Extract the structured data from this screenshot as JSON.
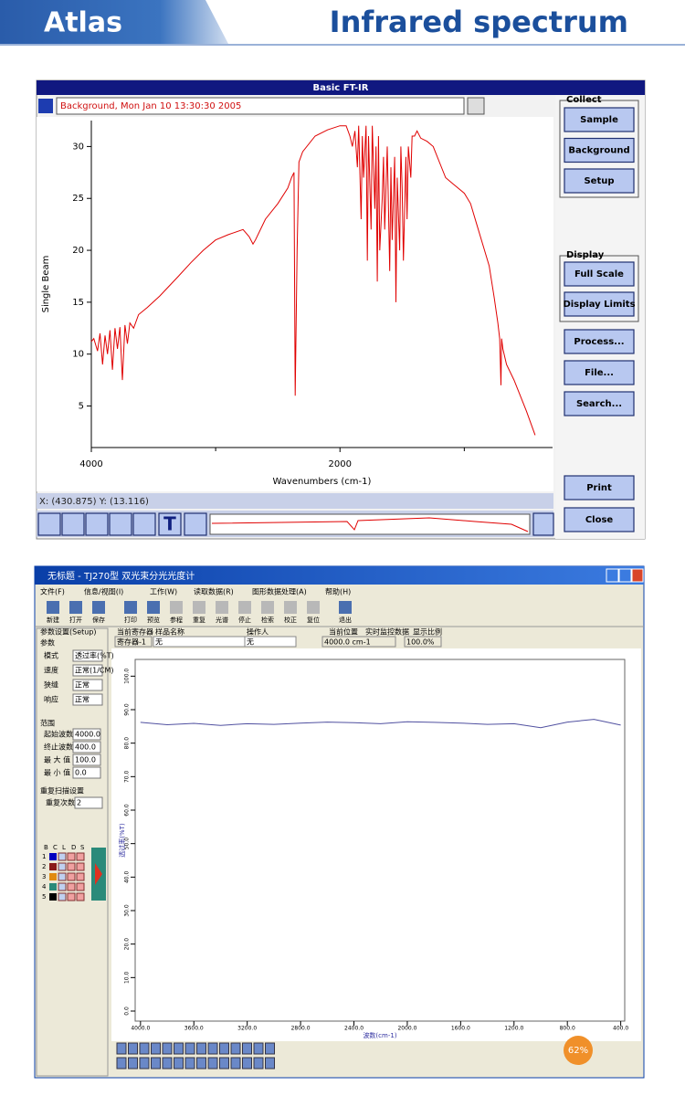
{
  "header": {
    "left": "Atlas",
    "right": "Infrared spectrum"
  },
  "ftir_window": {
    "title": "Basic FT-IR",
    "info": "Background, Mon Jan 10 13:30:30 2005",
    "status": "X: (430.875) Y: (13.116)",
    "collect_label": "Collect",
    "collect_buttons": [
      "Sample",
      "Background",
      "Setup"
    ],
    "display_label": "Display",
    "display_buttons": [
      "Full Scale",
      "Display Limits"
    ],
    "other_buttons": [
      "Process...",
      "File...",
      "Search..."
    ],
    "bottom_buttons": [
      "Print",
      "Close"
    ],
    "toolbar_text": "T"
  },
  "tj270_window": {
    "title": "无标题 - TJ270型 双光束分光光度计",
    "menu": [
      "文件(F)",
      "信息/视图(I)",
      "工作(W)",
      "读取数据(R)",
      "图形数据处理(A)",
      "帮助(H)"
    ],
    "toolbar": [
      "新建",
      "打开",
      "保存",
      "打印",
      "预览",
      "参程",
      "重复",
      "光谱",
      "停止",
      "检索",
      "校正",
      "复位",
      "退出"
    ],
    "tab": "参数设置(Setup)",
    "params_label": "参数",
    "params": [
      [
        "模式",
        "透过率(%T)"
      ],
      [
        "速度",
        "正常(1/CM)"
      ],
      [
        "狭缝",
        "正常"
      ],
      [
        "响应",
        "正常"
      ]
    ],
    "range_label": "范围",
    "range": [
      [
        "起始波数",
        "4000.0"
      ],
      [
        "终止波数",
        "400.0"
      ],
      [
        "最 大 值",
        "100.0"
      ],
      [
        "最 小 值",
        "0.0"
      ]
    ],
    "repeat_label": "重复扫描设置",
    "repeat": [
      "重复次数",
      "2"
    ],
    "register_table": {
      "header": [
        "B",
        "C",
        "L",
        "D",
        "S"
      ],
      "rows": [
        "1",
        "2",
        "3",
        "4",
        "5"
      ]
    },
    "field_labels": [
      "当前寄存器",
      "样品名称",
      "操作人",
      "当前位置",
      "实时监控数据",
      "显示比例"
    ],
    "field_values": [
      "寄存器-1",
      "无",
      "无",
      "4000.0 cm-1",
      "100.0%"
    ],
    "badge": "62%"
  },
  "chart_data": [
    {
      "type": "line",
      "x_label": "Wavenumbers (cm-1)",
      "y_label": "Single Beam",
      "xlim": [
        4000,
        290
      ],
      "ylim": [
        1,
        32.5
      ],
      "xticks": [
        4000,
        2000
      ],
      "x_minor_ticks": [
        3000,
        1000
      ],
      "yticks": [
        5,
        10,
        15,
        20,
        25,
        30
      ],
      "x": [
        4000,
        3980,
        3950,
        3930,
        3910,
        3890,
        3870,
        3850,
        3830,
        3810,
        3790,
        3770,
        3750,
        3730,
        3710,
        3690,
        3660,
        3620,
        3550,
        3450,
        3300,
        3200,
        3100,
        3000,
        2900,
        2780,
        2730,
        2700,
        2680,
        2600,
        2500,
        2420,
        2390,
        2370,
        2360,
        2345,
        2330,
        2300,
        2200,
        2100,
        2000,
        1950,
        1920,
        1900,
        1880,
        1860,
        1850,
        1830,
        1820,
        1810,
        1790,
        1780,
        1770,
        1750,
        1740,
        1720,
        1710,
        1700,
        1690,
        1680,
        1660,
        1650,
        1640,
        1620,
        1600,
        1590,
        1580,
        1560,
        1550,
        1540,
        1520,
        1510,
        1500,
        1490,
        1470,
        1460,
        1450,
        1430,
        1420,
        1400,
        1380,
        1350,
        1300,
        1250,
        1200,
        1150,
        1100,
        1050,
        1000,
        950,
        900,
        850,
        800,
        760,
        730,
        715,
        705,
        700,
        690,
        660,
        600,
        500,
        430
      ],
      "series": [
        {
          "color": "#e00000",
          "values": [
            11.2,
            11.5,
            10.3,
            12,
            9,
            11.8,
            10,
            12.3,
            8.5,
            12.5,
            10.5,
            12.6,
            7.5,
            12.8,
            11,
            13,
            12.5,
            13.8,
            14.5,
            15.6,
            17.5,
            18.8,
            20,
            21,
            21.5,
            22,
            21.3,
            20.6,
            21,
            23,
            24.5,
            26,
            27,
            27.5,
            6,
            20,
            28.5,
            29.5,
            31,
            31.6,
            32,
            32,
            31,
            30,
            31.5,
            28,
            32,
            23,
            31,
            27,
            32,
            19,
            31,
            22,
            32,
            24,
            30,
            17,
            31,
            20,
            25,
            29,
            22,
            30,
            18,
            28,
            21,
            29,
            15,
            27,
            20,
            30,
            26,
            19,
            29,
            23,
            30,
            27,
            31,
            31,
            31.5,
            30.8,
            30.5,
            30,
            28.5,
            27,
            26.5,
            26,
            25.5,
            24.5,
            22.5,
            20.5,
            18.5,
            15.5,
            13,
            11.5,
            7,
            11.5,
            10.5,
            9,
            7.5,
            4.5,
            2.2
          ]
        }
      ]
    },
    {
      "type": "line",
      "x_label": "波数(cm-1)",
      "y_label": "透过率(%T)",
      "xlim": [
        4040,
        370
      ],
      "ylim": [
        -3,
        105
      ],
      "xticks": [
        {
          "value": 4000,
          "label": "4000.0"
        },
        {
          "value": 3600,
          "label": "3600.0"
        },
        {
          "value": 3200,
          "label": "3200.0"
        },
        {
          "value": 2800,
          "label": "2800.0"
        },
        {
          "value": 2400,
          "label": "2400.0"
        },
        {
          "value": 2000,
          "label": "2000.0"
        },
        {
          "value": 1600,
          "label": "1600.0"
        },
        {
          "value": 1200,
          "label": "1200.0"
        },
        {
          "value": 800,
          "label": "800.0"
        },
        {
          "value": 400,
          "label": "400.0"
        }
      ],
      "yticks": [
        {
          "value": 0,
          "label": "0.0"
        },
        {
          "value": 10,
          "label": "10.0"
        },
        {
          "value": 20,
          "label": "20.0"
        },
        {
          "value": 30,
          "label": "30.0"
        },
        {
          "value": 40,
          "label": "40.0"
        },
        {
          "value": 50,
          "label": "50.0"
        },
        {
          "value": 60,
          "label": "60.0"
        },
        {
          "value": 70,
          "label": "70.0"
        },
        {
          "value": 80,
          "label": "80.0"
        },
        {
          "value": 90,
          "label": "90.0"
        },
        {
          "value": 100,
          "label": "100.0"
        }
      ],
      "x": [
        4000,
        3800,
        3600,
        3400,
        3200,
        3000,
        2800,
        2600,
        2400,
        2200,
        2000,
        1800,
        1600,
        1400,
        1200,
        1000,
        800,
        600,
        400
      ],
      "series": [
        {
          "color": "#5050a0",
          "values": [
            86.2,
            85.5,
            85.9,
            85.3,
            85.8,
            85.6,
            86.0,
            86.3,
            86.1,
            85.8,
            86.4,
            86.2,
            86.0,
            85.6,
            85.8,
            84.6,
            86.3,
            87.1,
            85.4
          ]
        }
      ]
    }
  ]
}
